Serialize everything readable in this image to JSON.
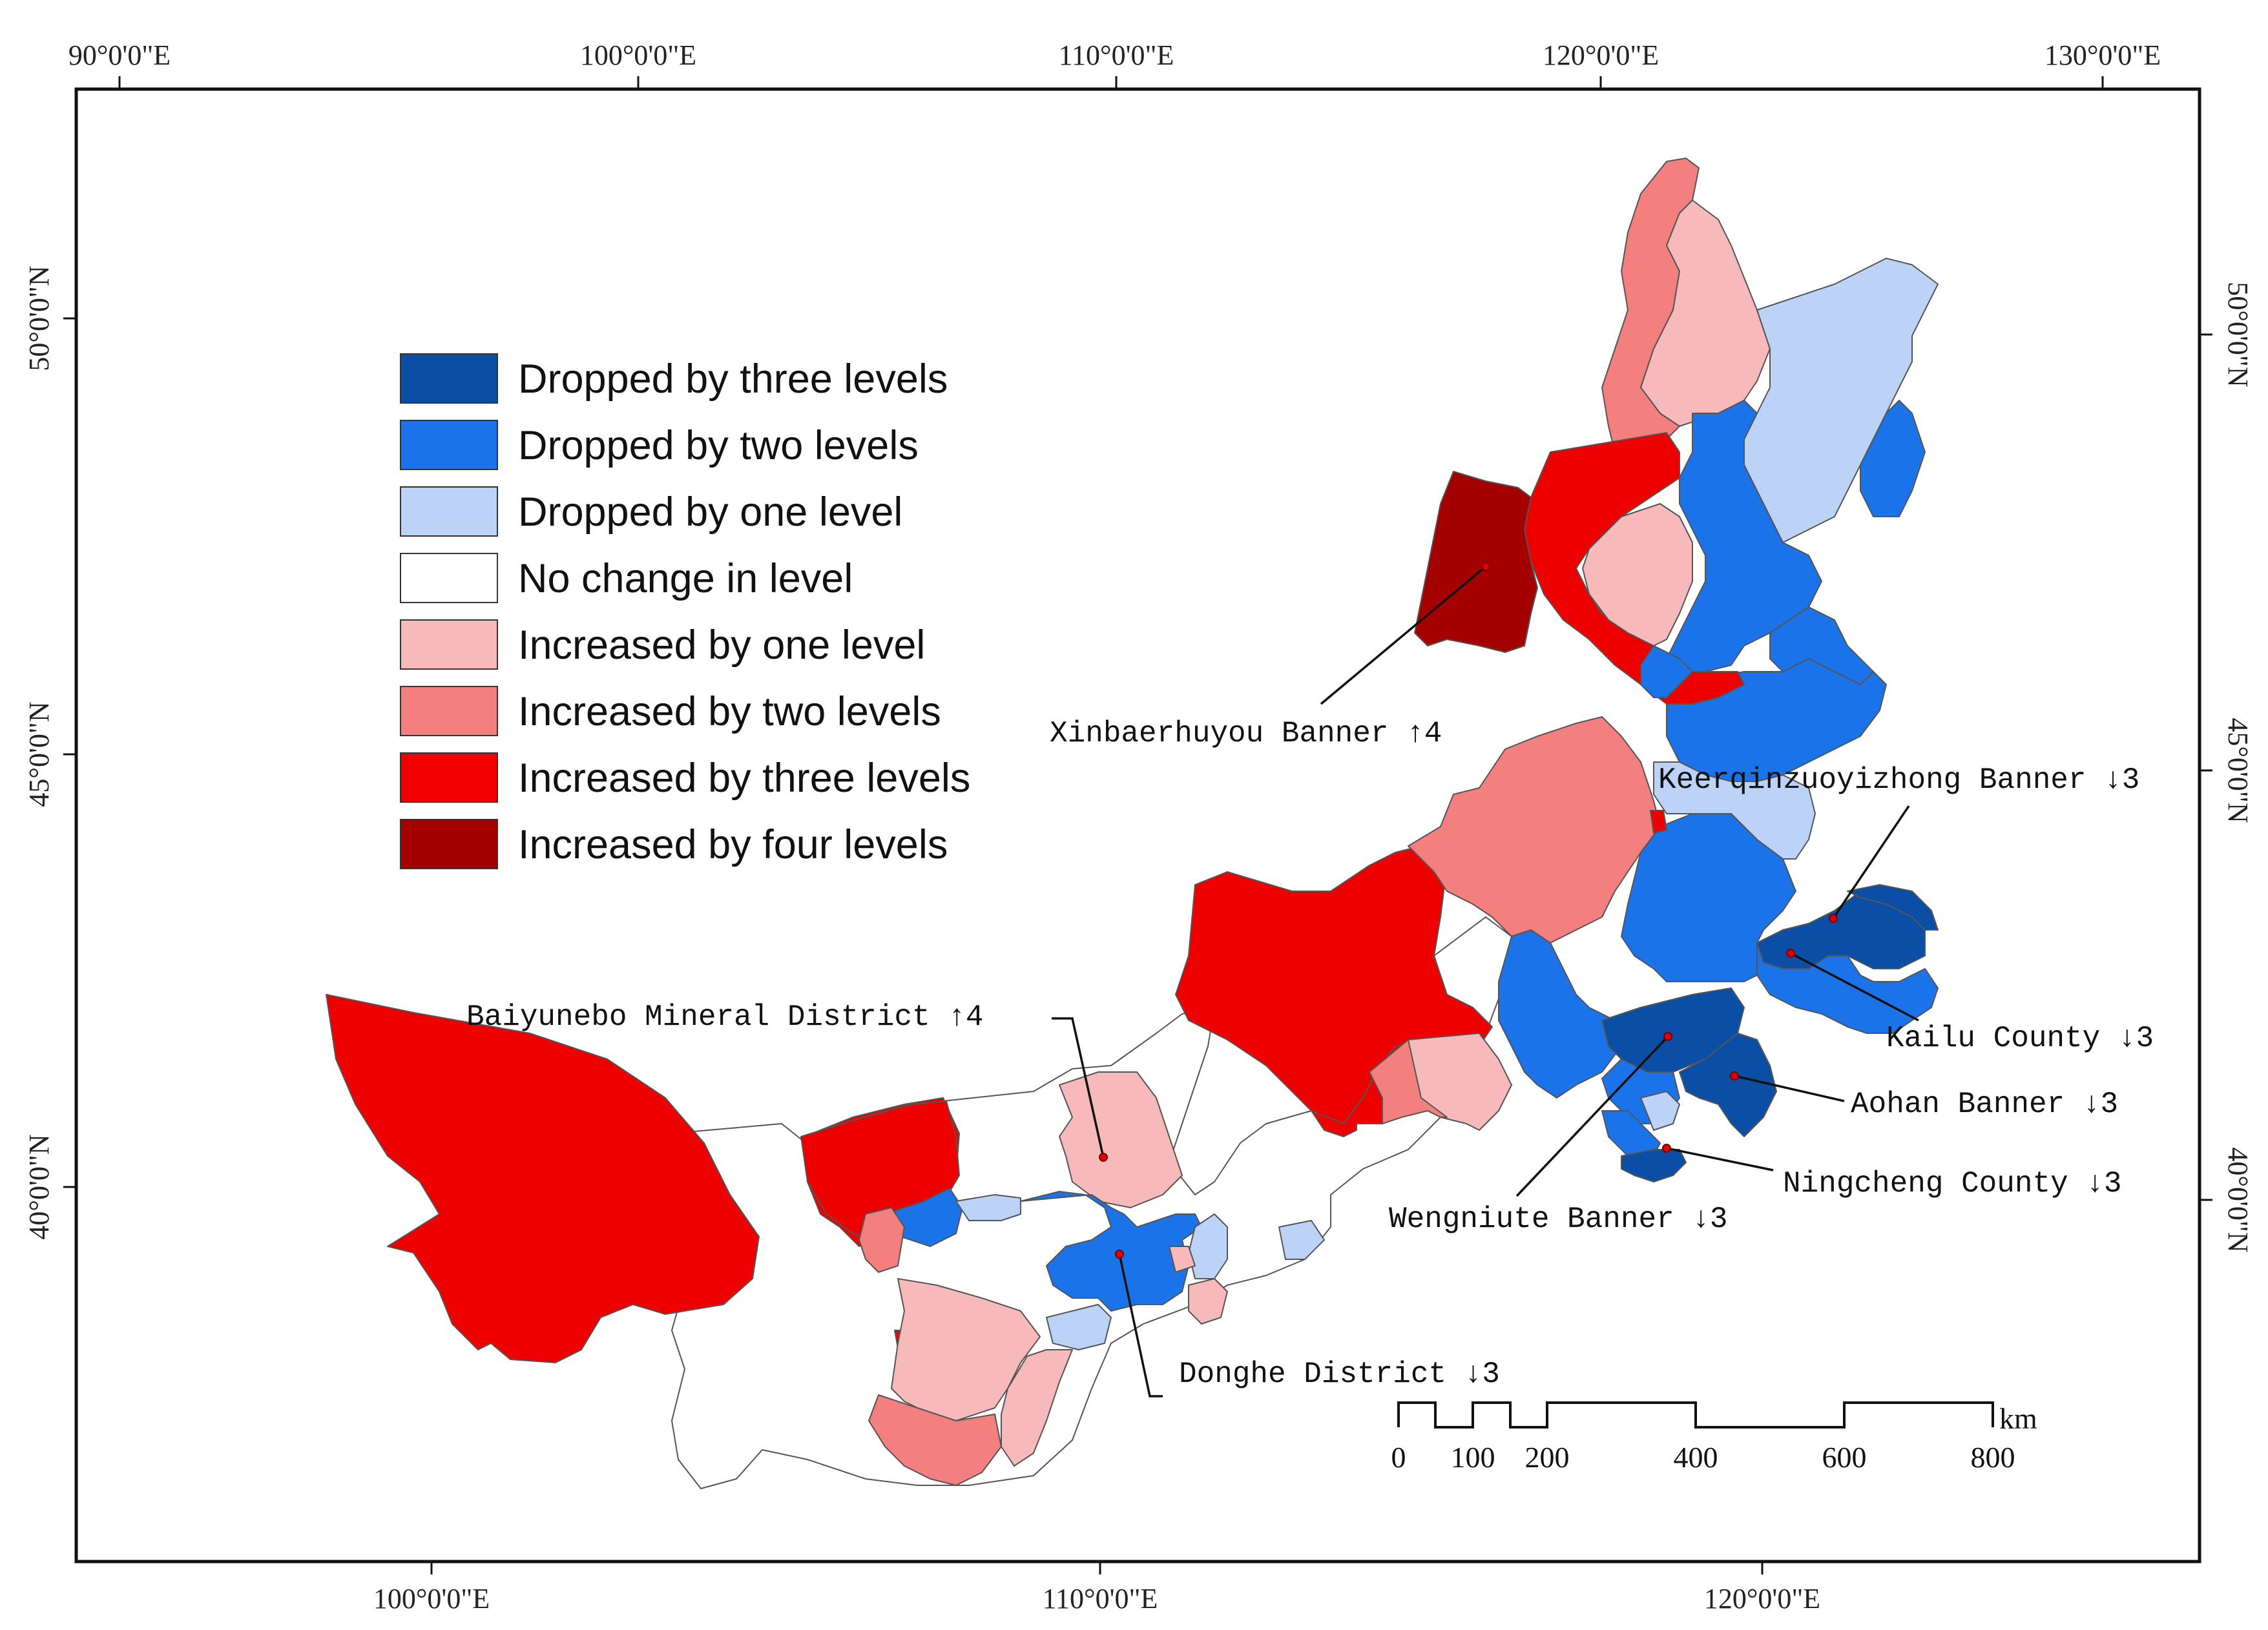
{
  "map": {
    "top_longitude_labels": [
      "90°0'0\"E",
      "100°0'0\"E",
      "110°0'0\"E",
      "120°0'0\"E",
      "130°0'0\"E"
    ],
    "bottom_longitude_labels": [
      "100°0'0\"E",
      "110°0'0\"E",
      "120°0'0\"E"
    ],
    "left_latitude_labels": [
      "50°0'0\"N",
      "45°0'0\"N",
      "40°0'0\"N"
    ],
    "right_latitude_labels": [
      "50°0'0\"N",
      "45°0'0\"N",
      "40°0'0\"N"
    ]
  },
  "legend": {
    "items": [
      {
        "label": "Dropped by three levels",
        "color": "#0b4ea6"
      },
      {
        "label": "Dropped by two levels",
        "color": "#1a73e8"
      },
      {
        "label": "Dropped by one level",
        "color": "#bcd2f7"
      },
      {
        "label": "No change in level",
        "color": "#ffffff"
      },
      {
        "label": "Increased by one level",
        "color": "#f7b9b9"
      },
      {
        "label": "Increased by two levels",
        "color": "#f37f7f"
      },
      {
        "label": "Increased by three levels",
        "color": "#f00000"
      },
      {
        "label": "Increased by four levels",
        "color": "#a50000"
      }
    ]
  },
  "callouts": {
    "xinbaerhuyou": "Xinbaerhuyou Banner  ↑4",
    "keerqin": "Keerqinzuoyizhong Banner  ↓3",
    "baiyunebo": "Baiyunebo Mineral District  ↑4",
    "kailu": "Kailu County  ↓3",
    "aohan": "Aohan Banner  ↓3",
    "ningcheng": "Ningcheng County  ↓3",
    "wengniute": "Wengniute Banner  ↓3",
    "donghe": "Donghe District  ↓3"
  },
  "scale_bar": {
    "labels": [
      "0",
      "100",
      "200",
      "400",
      "600",
      "800"
    ],
    "unit": "km"
  }
}
